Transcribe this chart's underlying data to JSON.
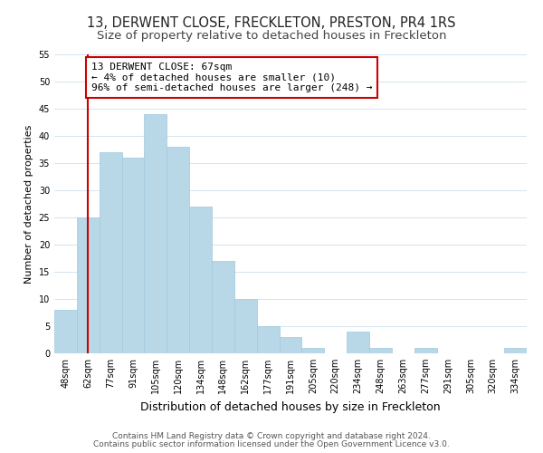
{
  "title": "13, DERWENT CLOSE, FRECKLETON, PRESTON, PR4 1RS",
  "subtitle": "Size of property relative to detached houses in Freckleton",
  "xlabel": "Distribution of detached houses by size in Freckleton",
  "ylabel": "Number of detached properties",
  "bin_labels": [
    "48sqm",
    "62sqm",
    "77sqm",
    "91sqm",
    "105sqm",
    "120sqm",
    "134sqm",
    "148sqm",
    "162sqm",
    "177sqm",
    "191sqm",
    "205sqm",
    "220sqm",
    "234sqm",
    "248sqm",
    "263sqm",
    "277sqm",
    "291sqm",
    "305sqm",
    "320sqm",
    "334sqm"
  ],
  "bar_values": [
    8,
    25,
    37,
    36,
    44,
    38,
    27,
    17,
    10,
    5,
    3,
    1,
    0,
    4,
    1,
    0,
    1,
    0,
    0,
    0,
    1
  ],
  "bar_color": "#b8d8e8",
  "bar_edge_color": "#a0c8de",
  "vline_x": 1,
  "vline_color": "#cc0000",
  "annotation_line1": "13 DERWENT CLOSE: 67sqm",
  "annotation_line2": "← 4% of detached houses are smaller (10)",
  "annotation_line3": "96% of semi-detached houses are larger (248) →",
  "annotation_box_color": "#ffffff",
  "annotation_box_edge_color": "#cc0000",
  "ylim": [
    0,
    55
  ],
  "yticks": [
    0,
    5,
    10,
    15,
    20,
    25,
    30,
    35,
    40,
    45,
    50,
    55
  ],
  "footer_line1": "Contains HM Land Registry data © Crown copyright and database right 2024.",
  "footer_line2": "Contains public sector information licensed under the Open Government Licence v3.0.",
  "title_fontsize": 10.5,
  "subtitle_fontsize": 9.5,
  "xlabel_fontsize": 9,
  "ylabel_fontsize": 8,
  "tick_fontsize": 7,
  "annotation_fontsize": 8,
  "footer_fontsize": 6.5
}
